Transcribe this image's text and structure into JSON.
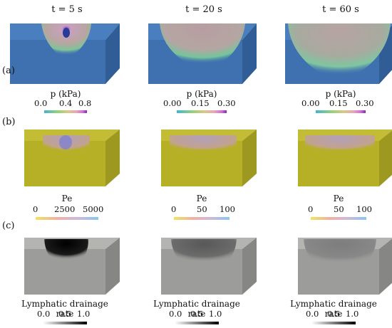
{
  "columns": [
    {
      "time": "t = 5 s"
    },
    {
      "time": "t = 20 s"
    },
    {
      "time": "t = 60 s"
    }
  ],
  "rows": [
    {
      "label": "(a)",
      "quantity": "p (kPa)",
      "colorbars": [
        {
          "ticks": [
            "0.0",
            "0.4",
            "0.8"
          ]
        },
        {
          "ticks": [
            "0.00",
            "0.15",
            "0.30"
          ]
        },
        {
          "ticks": [
            "0.00",
            "0.15",
            "0.30"
          ]
        }
      ]
    },
    {
      "label": "(b)",
      "quantity": "Pe",
      "colorbars": [
        {
          "ticks": [
            "0",
            "2500",
            "5000"
          ]
        },
        {
          "ticks": [
            "0",
            "50",
            "100"
          ]
        },
        {
          "ticks": [
            "0",
            "50",
            "100"
          ]
        }
      ]
    },
    {
      "label": "(c)",
      "quantity": "Lymphatic drainage rate",
      "colorbars": [
        {
          "ticks": [
            "0.0",
            "0.5",
            "1.0"
          ]
        },
        {
          "ticks": [
            "0.0",
            "0.5",
            "1.0"
          ]
        },
        {
          "ticks": [
            "0.0",
            "0.5",
            "1.0"
          ]
        }
      ]
    }
  ],
  "colors": {
    "pressure_base": "#3f70b0",
    "peclet_base": "#b5b025",
    "drainage_base": "#9c9c9a"
  }
}
